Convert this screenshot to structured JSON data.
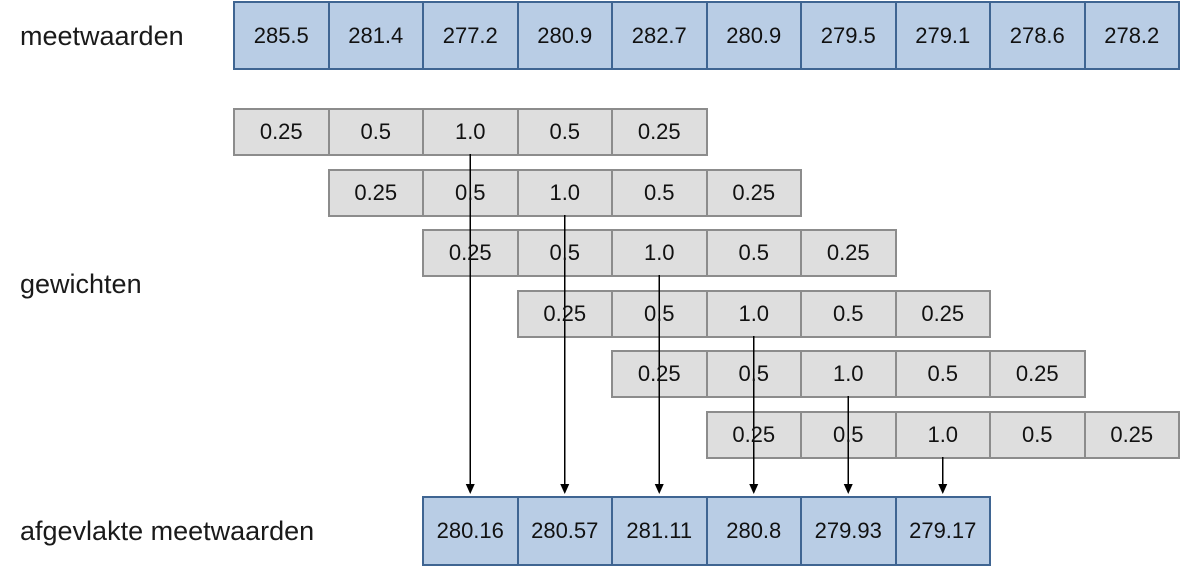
{
  "labels": {
    "measurements": "meetwaarden",
    "weights": "gewichten",
    "smoothed": "afgevlakte meetwaarden"
  },
  "measurements": [
    "285.5",
    "281.4",
    "277.2",
    "280.9",
    "282.7",
    "280.9",
    "279.5",
    "279.1",
    "278.6",
    "278.2"
  ],
  "weights": [
    "0.25",
    "0.5",
    "1.0",
    "0.5",
    "0.25"
  ],
  "weight_rows": 6,
  "smoothed": [
    "280.16",
    "280.57",
    "281.11",
    "280.8",
    "279.93",
    "279.17"
  ],
  "colors": {
    "measurement_fill": "#b9cde5",
    "measurement_border": "#3f6592",
    "weight_fill": "#dedede",
    "weight_border": "#8c8c8c",
    "arrow": "#000000"
  }
}
